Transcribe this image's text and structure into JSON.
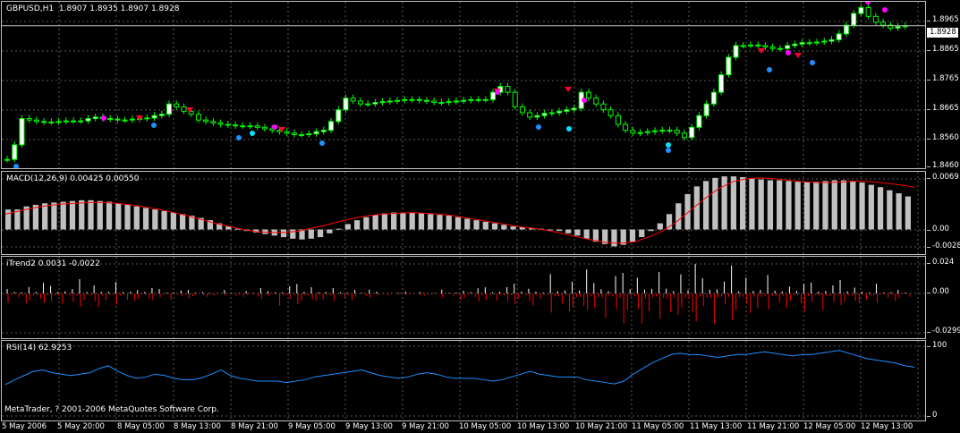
{
  "chart_title": "GBPUSD,H1  1.8907 1.8935 1.8907 1.8928",
  "current_price": "1.8928",
  "copyright": "MetaTrader, ? 2001-2006 MetaQuotes Software Corp.",
  "colors": {
    "background": "#000000",
    "grid": "#5a5a5a",
    "bull": "#ffffff",
    "bear": "#000000",
    "wick": "#00ff00",
    "macd_hist": "#c0c0c0",
    "macd_signal": "#ff0000",
    "itrend_up": "#ffffff",
    "itrend_down": "#ff0000",
    "rsi": "#1e90ff"
  },
  "panels": {
    "price": {
      "title": "GBPUSD,H1  1.8907 1.8935 1.8907 1.8928",
      "ticks": [
        "1.8965",
        "1.8865",
        "1.8765",
        "1.8665",
        "1.8560",
        "1.8460"
      ]
    },
    "macd": {
      "title": "MACD(12,26,9) 0.00425 0.00550",
      "ticks": [
        "0.0069",
        "0.00",
        "-0.0028"
      ]
    },
    "itrend": {
      "title": "iTrend2 0.0031 -0.0022",
      "ticks": [
        "0.024",
        "0.00",
        "-0.0299"
      ]
    },
    "rsi": {
      "title": "RSI(14) 62.9253",
      "ticks": [
        "100",
        "0"
      ]
    }
  },
  "x_labels": [
    "5 May 2006",
    "5 May 20:00",
    "8 May 05:00",
    "8 May 13:00",
    "8 May 21:00",
    "9 May 05:00",
    "9 May 13:00",
    "9 May 21:00",
    "10 May 05:00",
    "10 May 13:00",
    "10 May 21:00",
    "11 May 05:00",
    "11 May 13:00",
    "11 May 21:00",
    "12 May 05:00",
    "12 May 13:00"
  ],
  "chart_data": {
    "type": "candlestick",
    "symbol": "GBPUSD",
    "timeframe": "H1",
    "close_series": [
      1.847,
      1.852,
      1.861,
      1.8605,
      1.86,
      1.8598,
      1.8598,
      1.86,
      1.8602,
      1.8602,
      1.8602,
      1.861,
      1.8615,
      1.861,
      1.8608,
      1.8605,
      1.8605,
      1.8608,
      1.861,
      1.8612,
      1.862,
      1.8625,
      1.866,
      1.865,
      1.8635,
      1.8625,
      1.8605,
      1.86,
      1.8595,
      1.859,
      1.8588,
      1.8585,
      1.8585,
      1.8585,
      1.858,
      1.8575,
      1.857,
      1.8565,
      1.856,
      1.8555,
      1.8555,
      1.8558,
      1.8565,
      1.857,
      1.86,
      1.864,
      1.868,
      1.867,
      1.866,
      1.866,
      1.8665,
      1.8668,
      1.867,
      1.8672,
      1.8675,
      1.8675,
      1.8672,
      1.867,
      1.8665,
      1.8665,
      1.8668,
      1.867,
      1.8672,
      1.8675,
      1.8675,
      1.8675,
      1.87,
      1.872,
      1.87,
      1.865,
      1.863,
      1.8615,
      1.862,
      1.8628,
      1.863,
      1.8635,
      1.864,
      1.8645,
      1.87,
      1.868,
      1.866,
      1.864,
      1.862,
      1.859,
      1.857,
      1.856,
      1.8562,
      1.8565,
      1.8568,
      1.857,
      1.857,
      1.856,
      1.8545,
      1.858,
      1.862,
      1.866,
      1.87,
      1.876,
      1.882,
      1.886,
      1.886,
      1.8862,
      1.886,
      1.8855,
      1.885,
      1.885,
      1.886,
      1.8865,
      1.887,
      1.887,
      1.8872,
      1.8875,
      1.888,
      1.89,
      1.893,
      1.897,
      1.899,
      1.896,
      1.894,
      1.893,
      1.892,
      1.8925,
      1.8928
    ],
    "macd_histogram": [
      0.0026,
      0.0026,
      0.003,
      0.0032,
      0.0034,
      0.0035,
      0.0036,
      0.0037,
      0.0038,
      0.0038,
      0.0037,
      0.0036,
      0.0034,
      0.0032,
      0.003,
      0.0028,
      0.0026,
      0.0024,
      0.0022,
      0.002,
      0.0018,
      0.0015,
      0.0012,
      0.0008,
      0.0004,
      0.0001,
      -0.0002,
      -0.0004,
      -0.0006,
      -0.0008,
      -0.001,
      -0.0012,
      -0.0013,
      -0.0012,
      -0.001,
      -0.0005,
      0.0001,
      0.0007,
      0.0012,
      0.0016,
      0.0019,
      0.0021,
      0.0022,
      0.0022,
      0.0022,
      0.0021,
      0.002,
      0.0019,
      0.0018,
      0.0016,
      0.0014,
      0.0012,
      0.001,
      0.0008,
      0.0006,
      0.0004,
      0.0003,
      0.0002,
      0.0001,
      0.0,
      -0.0002,
      -0.0005,
      -0.0008,
      -0.0012,
      -0.0016,
      -0.0019,
      -0.0022,
      -0.002,
      -0.0016,
      -0.001,
      -0.0002,
      0.0008,
      0.002,
      0.0034,
      0.0046,
      0.0056,
      0.0063,
      0.0067,
      0.0069,
      0.0069,
      0.0068,
      0.0066,
      0.0065,
      0.0064,
      0.0064,
      0.0063,
      0.0062,
      0.0062,
      0.0062,
      0.0063,
      0.0064,
      0.0064,
      0.0063,
      0.0061,
      0.0058,
      0.0055,
      0.0051,
      0.0047,
      0.0043
    ],
    "macd_signal": [
      0.002,
      0.0024,
      0.0028,
      0.0031,
      0.0033,
      0.0034,
      0.0035,
      0.0035,
      0.0034,
      0.0032,
      0.0029,
      0.0026,
      0.0022,
      0.0018,
      0.0013,
      0.0008,
      0.0004,
      0.0,
      -0.0003,
      -0.0004,
      -0.0004,
      -0.0002,
      0.0002,
      0.0006,
      0.0011,
      0.0015,
      0.0018,
      0.002,
      0.0021,
      0.0022,
      0.0021,
      0.002,
      0.0018,
      0.0015,
      0.0012,
      0.0009,
      0.0006,
      0.0003,
      0.0001,
      -0.0002,
      -0.0006,
      -0.001,
      -0.0014,
      -0.0017,
      -0.0018,
      -0.0016,
      -0.001,
      -0.0002,
      0.001,
      0.0025,
      0.004,
      0.0053,
      0.0062,
      0.0066,
      0.0067,
      0.0066,
      0.0064,
      0.0062,
      0.0061,
      0.0061,
      0.0062,
      0.0063,
      0.0062,
      0.006,
      0.0058,
      0.0055
    ],
    "rsi": [
      45,
      52,
      58,
      64,
      66,
      62,
      60,
      58,
      60,
      62,
      68,
      72,
      64,
      58,
      54,
      56,
      60,
      58,
      54,
      52,
      52,
      55,
      60,
      66,
      58,
      54,
      52,
      50,
      50,
      50,
      48,
      50,
      52,
      56,
      58,
      60,
      62,
      64,
      66,
      62,
      58,
      56,
      54,
      56,
      60,
      62,
      60,
      56,
      54,
      54,
      54,
      52,
      50,
      52,
      56,
      60,
      64,
      60,
      58,
      56,
      56,
      56,
      52,
      50,
      48,
      46,
      50,
      60,
      68,
      76,
      82,
      88,
      90,
      88,
      88,
      86,
      84,
      86,
      88,
      88,
      90,
      92,
      90,
      88,
      86,
      88,
      88,
      90,
      92,
      94,
      90,
      86,
      82,
      80,
      78,
      76,
      72,
      70
    ]
  }
}
